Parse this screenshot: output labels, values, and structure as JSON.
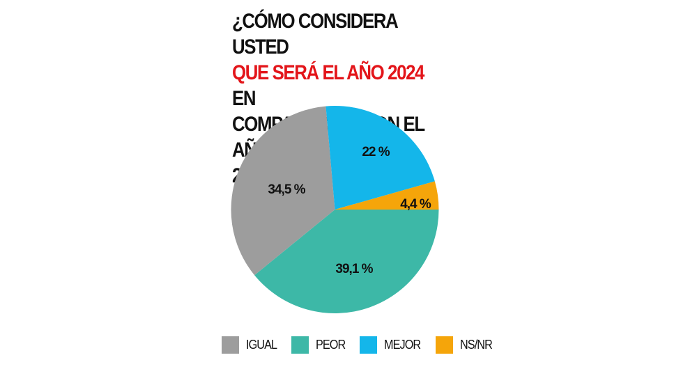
{
  "title": {
    "line1": "¿CÓMO CONSIDERA USTED",
    "highlight": "QUE SERÁ EL AÑO 2024",
    "rest_line2": " EN",
    "line3": "COMPARACIÓN CON EL AÑO",
    "line4": "2023?"
  },
  "colors": {
    "title_highlight": "#e3151a",
    "IGUAL": "#9d9d9d",
    "PEOR": "#3db8a7",
    "MEJOR": "#14b6ea",
    "NS/NR": "#f5a50a"
  },
  "labels": {
    "igual": "34,5 %",
    "peor": "39,1 %",
    "mejor": "22 %",
    "nsnr": "4,4 %"
  },
  "legend": [
    {
      "label": "IGUAL",
      "color": "#9d9d9d"
    },
    {
      "label": "PEOR",
      "color": "#3db8a7"
    },
    {
      "label": "MEJOR",
      "color": "#14b6ea"
    },
    {
      "label": "NS/NR",
      "color": "#f5a50a"
    }
  ],
  "chart_data": {
    "type": "pie",
    "title": "¿CÓMO CONSIDERA USTED QUE SERÁ EL AÑO 2024 EN COMPARACIÓN CON EL AÑO 2023?",
    "categories": [
      "IGUAL",
      "PEOR",
      "MEJOR",
      "NS/NR"
    ],
    "values": [
      34.5,
      39.1,
      22,
      4.4
    ],
    "unit": "%",
    "colors": [
      "#9d9d9d",
      "#3db8a7",
      "#14b6ea",
      "#f5a50a"
    ],
    "legend_position": "bottom"
  }
}
